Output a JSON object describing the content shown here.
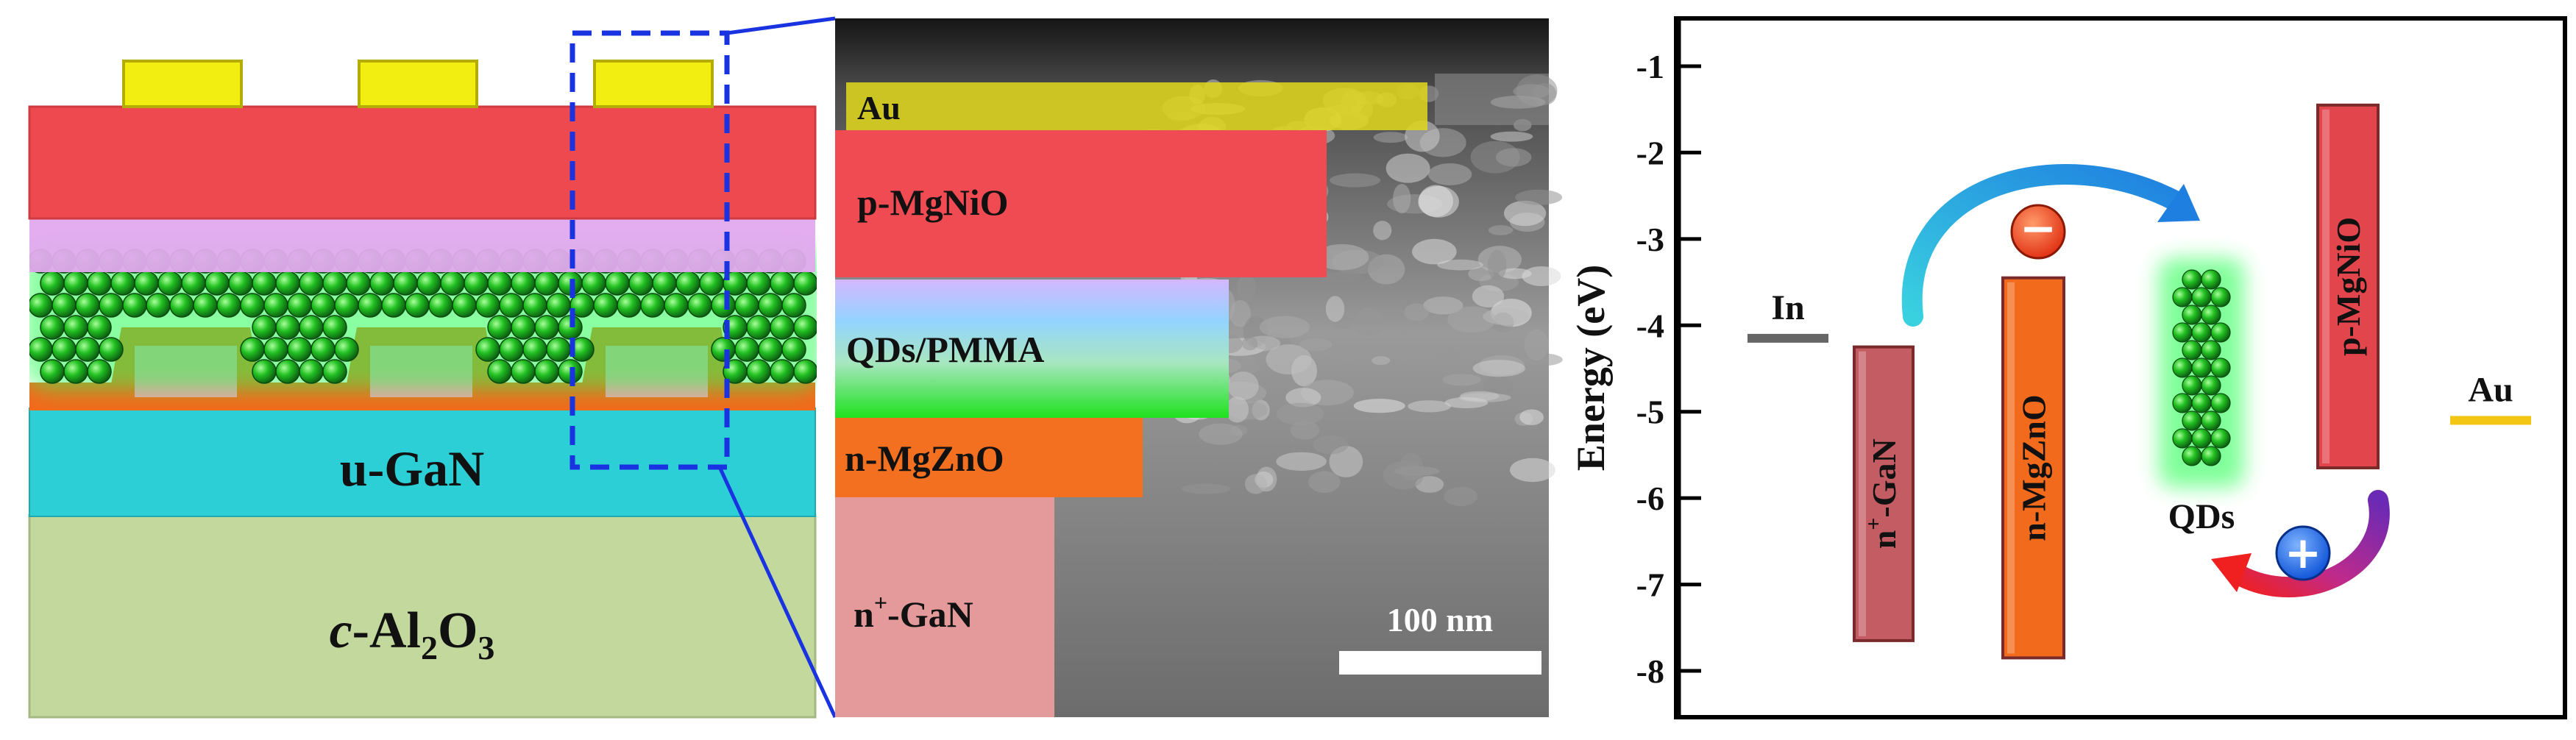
{
  "device_schematic": {
    "layers": {
      "contact": "Au",
      "hole_layer": "p-MgNiO",
      "emitter": "QDs/PMMA",
      "electron_layer": "n-MgZnO",
      "substrate_layer": "n+-GaN"
    },
    "u_gan_label": "u-GaN",
    "substrate_label": "c-Al2O3"
  },
  "sem_panel": {
    "labels": [
      "Au",
      "p-MgNiO",
      "QDs/PMMA",
      "n-MgZnO",
      "n+-GaN"
    ],
    "scale_bar": "100 nm"
  },
  "band_diagram": {
    "y_axis_label": "Energy (eV)",
    "y_ticks": [
      -1,
      -2,
      -3,
      -4,
      -5,
      -6,
      -7,
      -8
    ],
    "y_range": [
      -8.6,
      -0.6
    ],
    "levels": [
      {
        "name": "In",
        "type": "line",
        "energy": -4.15,
        "color": "#666666"
      },
      {
        "name": "n+-GaN",
        "type": "band",
        "top": -4.25,
        "bottom": -7.65,
        "color": "#c45d63"
      },
      {
        "name": "n-MgZnO",
        "type": "band",
        "top": -3.45,
        "bottom": -7.85,
        "color": "#f26a1b"
      },
      {
        "name": "QDs",
        "type": "qd",
        "top": -3.35,
        "bottom": -5.75
      },
      {
        "name": "p-MgNiO",
        "type": "band",
        "top": -1.45,
        "bottom": -5.65,
        "color": "#e2454b"
      },
      {
        "name": "Au",
        "type": "line",
        "energy": -5.1,
        "color": "#f3c614"
      }
    ],
    "carrier_symbols": {
      "electron": "−",
      "hole": "+"
    }
  }
}
